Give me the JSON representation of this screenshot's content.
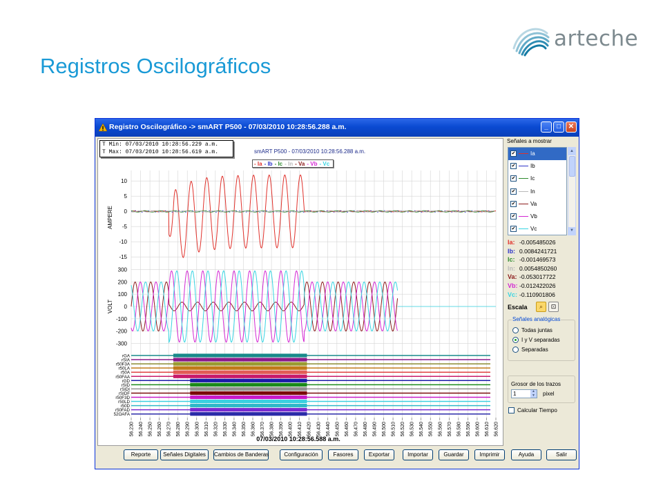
{
  "slide": {
    "title": "Registros Oscilográficos",
    "logo_text": "arteche",
    "logo_color": "#7d8a8f",
    "title_color": "#1a9ad6"
  },
  "window": {
    "title": "Registro Oscilográfico -> smART P500 - 07/03/2010 10:28:56.288 a.m.",
    "controls": {
      "minimize": "_",
      "maximize": "□",
      "close": "✕"
    }
  },
  "plot": {
    "t_min": "T Min: 07/03/2010 10:28:56.229 a.m.",
    "t_max": "T Max: 07/03/2010 10:28:56.619 a.m.",
    "header": "smART P500 - 07/03/2010 10:28:56.288 a.m.",
    "legend": [
      {
        "label": "- Ia",
        "color": "#e0302a"
      },
      {
        "label": "- Ib",
        "color": "#2c33c8"
      },
      {
        "label": "- Ic",
        "color": "#2d8a2d"
      },
      {
        "label": "- In",
        "color": "#b9b9b9"
      },
      {
        "label": "- Va",
        "color": "#8b1a1a"
      },
      {
        "label": "- Vb",
        "color": "#d326d3"
      },
      {
        "label": "- Vc",
        "color": "#36d4e2"
      }
    ],
    "footer_time": "07/03/2010 10:28:56.588 a.m."
  },
  "chart_data": [
    {
      "type": "line",
      "ylabel": "AMPERE",
      "y_ticks": [
        "10",
        "5",
        "0",
        "-5",
        "-10",
        "-15"
      ],
      "ylim": [
        -17,
        13
      ],
      "x_ticks": [
        "56.230",
        "56.240",
        "56.250",
        "56.260",
        "56.270",
        "56.280",
        "56.290",
        "56.300",
        "56.310",
        "56.320",
        "56.330",
        "56.340",
        "56.350",
        "56.360",
        "56.370",
        "56.380",
        "56.390",
        "56.400",
        "56.410",
        "56.420",
        "56.430",
        "56.440",
        "56.450",
        "56.460",
        "56.470",
        "56.480",
        "56.490",
        "56.500",
        "56.510",
        "56.520",
        "56.530",
        "56.540",
        "56.550",
        "56.560",
        "56.570",
        "56.580",
        "56.590",
        "56.600",
        "56.610",
        "56.620"
      ],
      "series": [
        {
          "name": "Ia",
          "color": "#e0302a",
          "fault_start": 56.27,
          "fault_end": 56.415,
          "peak": 13,
          "trough": -17
        },
        {
          "name": "Ib",
          "color": "#2c33c8"
        },
        {
          "name": "Ic",
          "color": "#2d8a2d"
        },
        {
          "name": "In",
          "color": "#b9b9b9"
        }
      ]
    },
    {
      "type": "line",
      "ylabel": "VOLT",
      "y_ticks": [
        "300",
        "200",
        "100",
        "0",
        "-100",
        "-200",
        "-300"
      ],
      "ylim": [
        -320,
        320
      ],
      "series": [
        {
          "name": "Va",
          "color": "#8b1a1a",
          "end_time": 56.515
        },
        {
          "name": "Vb",
          "color": "#d326d3",
          "end_time": 56.515
        },
        {
          "name": "Vc",
          "color": "#36d4e2",
          "end_time": 56.515
        }
      ]
    },
    {
      "type": "table",
      "digital_signals": [
        "rGA",
        "rSIA",
        "r50F3A",
        "r50LA",
        "r50A",
        "r50FAA",
        "rGD",
        "rSID",
        "rSIDI",
        "rSIDF",
        "r50F3D",
        "r50LD",
        "r50D",
        "r50FAD",
        "52OAFA"
      ]
    }
  ],
  "side": {
    "signals_label": "Señales a mostrar",
    "signals": [
      {
        "name": "Ia",
        "color": "#e0302a",
        "checked": "✔"
      },
      {
        "name": "Ib",
        "color": "#2c33c8",
        "checked": "✔"
      },
      {
        "name": "Ic",
        "color": "#2d8a2d",
        "checked": "✔"
      },
      {
        "name": "In",
        "color": "#b9b9b9",
        "checked": "✔"
      },
      {
        "name": "Va",
        "color": "#8b1a1a",
        "checked": "✔"
      },
      {
        "name": "Vb",
        "color": "#d326d3",
        "checked": "✔"
      },
      {
        "name": "Vc",
        "color": "#36d4e2",
        "checked": "✔"
      }
    ],
    "values": [
      {
        "label": "Ia:",
        "value": "-0.005485026",
        "color": "#e0302a"
      },
      {
        "label": "Ib:",
        "value": "0.0084241721",
        "color": "#2c33c8"
      },
      {
        "label": "Ic:",
        "value": "-0.001469573",
        "color": "#2d8a2d"
      },
      {
        "label": "In:",
        "value": "0.0054850260",
        "color": "#b9b9b9"
      },
      {
        "label": "Va:",
        "value": "-0.053017722",
        "color": "#8b1a1a"
      },
      {
        "label": "Vb:",
        "value": "-0.012422026",
        "color": "#d326d3"
      },
      {
        "label": "Vc:",
        "value": "-0.110901806",
        "color": "#36d4e2"
      }
    ],
    "escala": "Escala",
    "analog_group": "Señales analógicas",
    "radios": [
      "Todas juntas",
      "I y V separadas",
      "Separadas"
    ],
    "radio_selected": "I y V separadas",
    "grosor_label": "Grosor de los trazos",
    "grosor_value": "1",
    "pixel_label": "pixel",
    "calc_label": "Calcular Tiempo"
  },
  "buttons": [
    "Reporte",
    "Señales Digitales",
    "Cambios de Banderas",
    "Configuración",
    "Fasores",
    "Exportar",
    "Importar",
    "Guardar",
    "Imprimir",
    "Ayuda",
    "Salir"
  ]
}
